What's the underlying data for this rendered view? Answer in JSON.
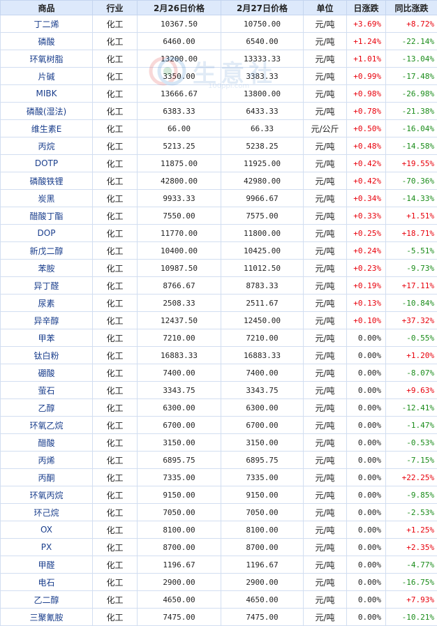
{
  "headers": [
    "商品",
    "行业",
    "2月26日价格",
    "2月27日价格",
    "单位",
    "日涨跌",
    "同比涨跌"
  ],
  "watermark": {
    "brand": "生意社",
    "url": "100ppi.com"
  },
  "rows": [
    {
      "name": "丁二烯",
      "industry": "化工",
      "p1": "10367.50",
      "p2": "10750.00",
      "unit": "元/吨",
      "day": "+3.69%",
      "yoy": "+8.72%"
    },
    {
      "name": "磷酸",
      "industry": "化工",
      "p1": "6460.00",
      "p2": "6540.00",
      "unit": "元/吨",
      "day": "+1.24%",
      "yoy": "-22.14%"
    },
    {
      "name": "环氧树脂",
      "industry": "化工",
      "p1": "13200.00",
      "p2": "13333.33",
      "unit": "元/吨",
      "day": "+1.01%",
      "yoy": "-13.04%"
    },
    {
      "name": "片碱",
      "industry": "化工",
      "p1": "3350.00",
      "p2": "3383.33",
      "unit": "元/吨",
      "day": "+0.99%",
      "yoy": "-17.48%"
    },
    {
      "name": "MIBK",
      "industry": "化工",
      "p1": "13666.67",
      "p2": "13800.00",
      "unit": "元/吨",
      "day": "+0.98%",
      "yoy": "-26.98%"
    },
    {
      "name": "磷酸(湿法)",
      "industry": "化工",
      "p1": "6383.33",
      "p2": "6433.33",
      "unit": "元/吨",
      "day": "+0.78%",
      "yoy": "-21.38%"
    },
    {
      "name": "维生素E",
      "industry": "化工",
      "p1": "66.00",
      "p2": "66.33",
      "unit": "元/公斤",
      "day": "+0.50%",
      "yoy": "-16.04%"
    },
    {
      "name": "丙烷",
      "industry": "化工",
      "p1": "5213.25",
      "p2": "5238.25",
      "unit": "元/吨",
      "day": "+0.48%",
      "yoy": "-14.58%"
    },
    {
      "name": "DOTP",
      "industry": "化工",
      "p1": "11875.00",
      "p2": "11925.00",
      "unit": "元/吨",
      "day": "+0.42%",
      "yoy": "+19.55%"
    },
    {
      "name": "磷酸铁锂",
      "industry": "化工",
      "p1": "42800.00",
      "p2": "42980.00",
      "unit": "元/吨",
      "day": "+0.42%",
      "yoy": "-70.36%"
    },
    {
      "name": "炭黑",
      "industry": "化工",
      "p1": "9933.33",
      "p2": "9966.67",
      "unit": "元/吨",
      "day": "+0.34%",
      "yoy": "-14.33%"
    },
    {
      "name": "醋酸丁酯",
      "industry": "化工",
      "p1": "7550.00",
      "p2": "7575.00",
      "unit": "元/吨",
      "day": "+0.33%",
      "yoy": "+1.51%"
    },
    {
      "name": "DOP",
      "industry": "化工",
      "p1": "11770.00",
      "p2": "11800.00",
      "unit": "元/吨",
      "day": "+0.25%",
      "yoy": "+18.71%"
    },
    {
      "name": "新戊二醇",
      "industry": "化工",
      "p1": "10400.00",
      "p2": "10425.00",
      "unit": "元/吨",
      "day": "+0.24%",
      "yoy": "-5.51%"
    },
    {
      "name": "苯胺",
      "industry": "化工",
      "p1": "10987.50",
      "p2": "11012.50",
      "unit": "元/吨",
      "day": "+0.23%",
      "yoy": "-9.73%"
    },
    {
      "name": "异丁醛",
      "industry": "化工",
      "p1": "8766.67",
      "p2": "8783.33",
      "unit": "元/吨",
      "day": "+0.19%",
      "yoy": "+17.11%"
    },
    {
      "name": "尿素",
      "industry": "化工",
      "p1": "2508.33",
      "p2": "2511.67",
      "unit": "元/吨",
      "day": "+0.13%",
      "yoy": "-10.84%"
    },
    {
      "name": "异辛醇",
      "industry": "化工",
      "p1": "12437.50",
      "p2": "12450.00",
      "unit": "元/吨",
      "day": "+0.10%",
      "yoy": "+37.32%"
    },
    {
      "name": "甲苯",
      "industry": "化工",
      "p1": "7210.00",
      "p2": "7210.00",
      "unit": "元/吨",
      "day": "0.00%",
      "yoy": "-0.55%"
    },
    {
      "name": "钛白粉",
      "industry": "化工",
      "p1": "16883.33",
      "p2": "16883.33",
      "unit": "元/吨",
      "day": "0.00%",
      "yoy": "+1.20%"
    },
    {
      "name": "硼酸",
      "industry": "化工",
      "p1": "7400.00",
      "p2": "7400.00",
      "unit": "元/吨",
      "day": "0.00%",
      "yoy": "-8.07%"
    },
    {
      "name": "萤石",
      "industry": "化工",
      "p1": "3343.75",
      "p2": "3343.75",
      "unit": "元/吨",
      "day": "0.00%",
      "yoy": "+9.63%"
    },
    {
      "name": "乙醇",
      "industry": "化工",
      "p1": "6300.00",
      "p2": "6300.00",
      "unit": "元/吨",
      "day": "0.00%",
      "yoy": "-12.41%"
    },
    {
      "name": "环氧乙烷",
      "industry": "化工",
      "p1": "6700.00",
      "p2": "6700.00",
      "unit": "元/吨",
      "day": "0.00%",
      "yoy": "-1.47%"
    },
    {
      "name": "醋酸",
      "industry": "化工",
      "p1": "3150.00",
      "p2": "3150.00",
      "unit": "元/吨",
      "day": "0.00%",
      "yoy": "-0.53%"
    },
    {
      "name": "丙烯",
      "industry": "化工",
      "p1": "6895.75",
      "p2": "6895.75",
      "unit": "元/吨",
      "day": "0.00%",
      "yoy": "-7.15%"
    },
    {
      "name": "丙酮",
      "industry": "化工",
      "p1": "7335.00",
      "p2": "7335.00",
      "unit": "元/吨",
      "day": "0.00%",
      "yoy": "+22.25%"
    },
    {
      "name": "环氧丙烷",
      "industry": "化工",
      "p1": "9150.00",
      "p2": "9150.00",
      "unit": "元/吨",
      "day": "0.00%",
      "yoy": "-9.85%"
    },
    {
      "name": "环己烷",
      "industry": "化工",
      "p1": "7050.00",
      "p2": "7050.00",
      "unit": "元/吨",
      "day": "0.00%",
      "yoy": "-2.53%"
    },
    {
      "name": "OX",
      "industry": "化工",
      "p1": "8100.00",
      "p2": "8100.00",
      "unit": "元/吨",
      "day": "0.00%",
      "yoy": "+1.25%"
    },
    {
      "name": "PX",
      "industry": "化工",
      "p1": "8700.00",
      "p2": "8700.00",
      "unit": "元/吨",
      "day": "0.00%",
      "yoy": "+2.35%"
    },
    {
      "name": "甲醛",
      "industry": "化工",
      "p1": "1196.67",
      "p2": "1196.67",
      "unit": "元/吨",
      "day": "0.00%",
      "yoy": "-4.77%"
    },
    {
      "name": "电石",
      "industry": "化工",
      "p1": "2900.00",
      "p2": "2900.00",
      "unit": "元/吨",
      "day": "0.00%",
      "yoy": "-16.75%"
    },
    {
      "name": "乙二醇",
      "industry": "化工",
      "p1": "4650.00",
      "p2": "4650.00",
      "unit": "元/吨",
      "day": "0.00%",
      "yoy": "+7.93%"
    },
    {
      "name": "三聚氰胺",
      "industry": "化工",
      "p1": "7475.00",
      "p2": "7475.00",
      "unit": "元/吨",
      "day": "0.00%",
      "yoy": "-10.21%"
    }
  ]
}
